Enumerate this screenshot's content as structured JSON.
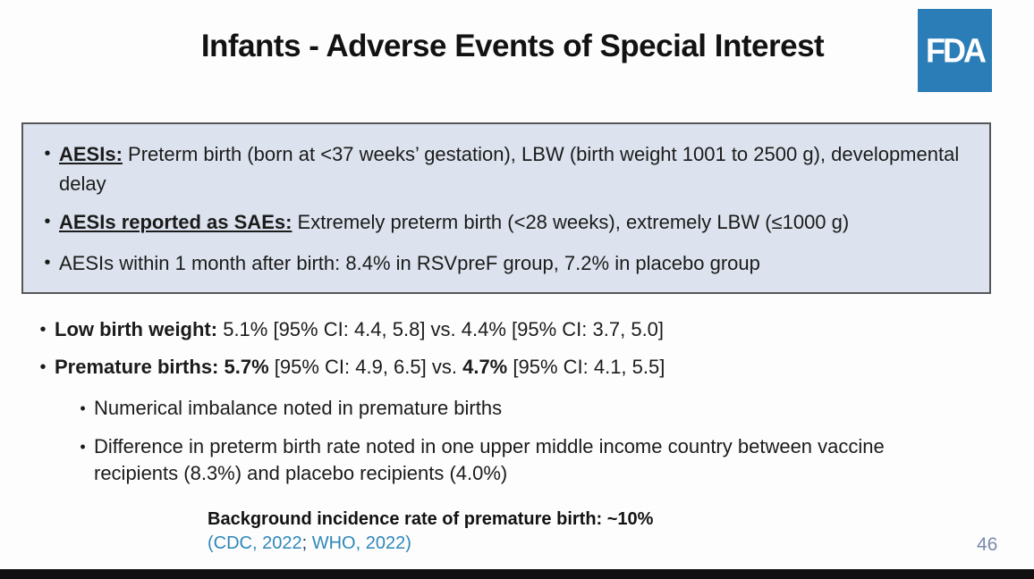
{
  "title": "Infants - Adverse Events of Special Interest",
  "logo": {
    "label": "FDA"
  },
  "icons": {
    "bullet": "•"
  },
  "info_box": {
    "bullet1": {
      "lead": "AESIs:",
      "text": " Preterm birth (born at <37 weeks’ gestation), LBW (birth weight 1001 to 2500 g), developmental delay"
    },
    "bullet2": {
      "lead": "AESIs reported as SAEs:",
      "text": " Extremely preterm birth (<28 weeks), extremely LBW (≤1000 g)"
    },
    "bullet3": {
      "text": "AESIs within 1 month after birth: 8.4% in RSVpreF group, 7.2% in placebo group"
    }
  },
  "findings": {
    "lbw": {
      "lead": "Low birth weight: ",
      "text": "5.1% [95% CI: 4.4, 5.8] vs. 4.4% [95% CI: 3.7, 5.0]"
    },
    "premature": {
      "lead": "Premature births: ",
      "value1": "5.7%",
      "mid": " [95% CI: 4.9, 6.5] vs. ",
      "value2": "4.7%",
      "tail": " [95% CI: 4.1, 5.5]"
    },
    "sub1": "Numerical imbalance noted in premature births",
    "sub2": "Difference in preterm birth rate noted in one upper middle income country between vaccine recipients (8.3%) and placebo recipients (4.0%)"
  },
  "footer": {
    "note": "Background incidence rate of premature birth: ~10%",
    "cite_open": "(",
    "link1": "CDC, 2022",
    "separator": "; ",
    "link2": "WHO, 2022",
    "cite_close": ")"
  },
  "page_number": "46",
  "colors": {
    "fda_blue": "#2a7db6",
    "box_bg": "#dce3ee",
    "link_blue": "#2e87b9",
    "page_number_color": "#7a8bab"
  }
}
